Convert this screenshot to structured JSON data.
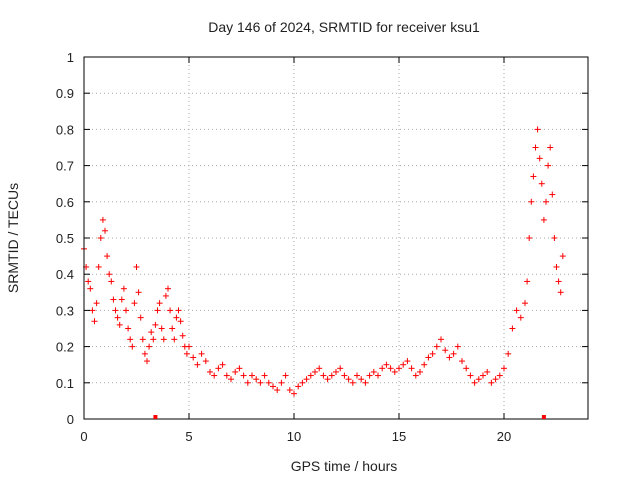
{
  "chart_data": {
    "type": "scatter",
    "title": "Day 146 of 2024, SRMTID for receiver ksu1",
    "xlabel": "GPS time / hours",
    "ylabel": "SRMTID / TECUs",
    "xlim": [
      0,
      24
    ],
    "ylim": [
      0,
      1
    ],
    "xticks": [
      "0",
      "5",
      "10",
      "15",
      "20"
    ],
    "yticks": [
      "0",
      "0.1",
      "0.2",
      "0.3",
      "0.4",
      "0.5",
      "0.6",
      "0.7",
      "0.8",
      "0.9",
      "1"
    ],
    "xtick_values": [
      0,
      5,
      10,
      15,
      20
    ],
    "ytick_values": [
      0,
      0.1,
      0.2,
      0.3,
      0.4,
      0.5,
      0.6,
      0.7,
      0.8,
      0.9,
      1
    ],
    "grid": true,
    "marker": "plus",
    "marker_color": "#ff0000",
    "series": [
      {
        "name": "SRMTID",
        "x": [
          0.0,
          0.1,
          0.2,
          0.3,
          0.4,
          0.5,
          0.6,
          0.7,
          0.8,
          0.9,
          1.0,
          1.1,
          1.2,
          1.3,
          1.4,
          1.5,
          1.6,
          1.7,
          1.8,
          1.9,
          2.0,
          2.1,
          2.2,
          2.3,
          2.4,
          2.5,
          2.6,
          2.7,
          2.8,
          2.9,
          3.0,
          3.1,
          3.2,
          3.3,
          3.4,
          3.5,
          3.6,
          3.7,
          3.8,
          3.9,
          4.0,
          4.1,
          4.2,
          4.3,
          4.4,
          4.5,
          4.6,
          4.7,
          4.8,
          4.9,
          5.0,
          5.2,
          5.4,
          5.6,
          5.8,
          6.0,
          6.2,
          6.4,
          6.6,
          6.8,
          7.0,
          7.2,
          7.4,
          7.6,
          7.8,
          8.0,
          8.2,
          8.4,
          8.6,
          8.8,
          9.0,
          9.2,
          9.4,
          9.6,
          9.8,
          10.0,
          10.2,
          10.4,
          10.6,
          10.8,
          11.0,
          11.2,
          11.4,
          11.6,
          11.8,
          12.0,
          12.2,
          12.4,
          12.6,
          12.8,
          13.0,
          13.2,
          13.4,
          13.6,
          13.8,
          14.0,
          14.2,
          14.4,
          14.6,
          14.8,
          15.0,
          15.2,
          15.4,
          15.6,
          15.8,
          16.0,
          16.2,
          16.4,
          16.6,
          16.8,
          17.0,
          17.2,
          17.4,
          17.6,
          17.8,
          18.0,
          18.2,
          18.4,
          18.6,
          18.8,
          19.0,
          19.2,
          19.4,
          19.6,
          19.8,
          20.0,
          20.2,
          20.4,
          20.6,
          20.8,
          21.0,
          21.1,
          21.2,
          21.3,
          21.4,
          21.5,
          21.6,
          21.7,
          21.8,
          21.9,
          22.0,
          22.1,
          22.2,
          22.3,
          22.4,
          22.5,
          22.6,
          22.7,
          22.8
        ],
        "y": [
          0.47,
          0.42,
          0.38,
          0.36,
          0.3,
          0.27,
          0.32,
          0.42,
          0.5,
          0.55,
          0.52,
          0.45,
          0.4,
          0.38,
          0.33,
          0.3,
          0.28,
          0.26,
          0.33,
          0.36,
          0.3,
          0.25,
          0.22,
          0.2,
          0.32,
          0.42,
          0.35,
          0.28,
          0.22,
          0.18,
          0.16,
          0.2,
          0.24,
          0.22,
          0.26,
          0.3,
          0.32,
          0.25,
          0.22,
          0.34,
          0.36,
          0.3,
          0.25,
          0.22,
          0.28,
          0.3,
          0.27,
          0.23,
          0.2,
          0.18,
          0.2,
          0.17,
          0.15,
          0.18,
          0.16,
          0.13,
          0.12,
          0.14,
          0.15,
          0.12,
          0.11,
          0.13,
          0.14,
          0.12,
          0.1,
          0.12,
          0.11,
          0.1,
          0.12,
          0.1,
          0.09,
          0.08,
          0.1,
          0.12,
          0.08,
          0.07,
          0.09,
          0.1,
          0.11,
          0.12,
          0.13,
          0.14,
          0.12,
          0.11,
          0.12,
          0.13,
          0.14,
          0.12,
          0.11,
          0.1,
          0.12,
          0.11,
          0.1,
          0.12,
          0.13,
          0.12,
          0.14,
          0.15,
          0.14,
          0.13,
          0.14,
          0.15,
          0.16,
          0.14,
          0.12,
          0.13,
          0.15,
          0.17,
          0.18,
          0.2,
          0.22,
          0.19,
          0.17,
          0.18,
          0.2,
          0.16,
          0.14,
          0.12,
          0.1,
          0.11,
          0.12,
          0.13,
          0.1,
          0.11,
          0.12,
          0.14,
          0.18,
          0.25,
          0.3,
          0.28,
          0.32,
          0.38,
          0.5,
          0.6,
          0.67,
          0.75,
          0.8,
          0.72,
          0.65,
          0.55,
          0.6,
          0.7,
          0.75,
          0.62,
          0.5,
          0.42,
          0.38,
          0.35,
          0.45
        ]
      }
    ],
    "axis_markers_x": [
      3.4,
      21.9
    ]
  }
}
